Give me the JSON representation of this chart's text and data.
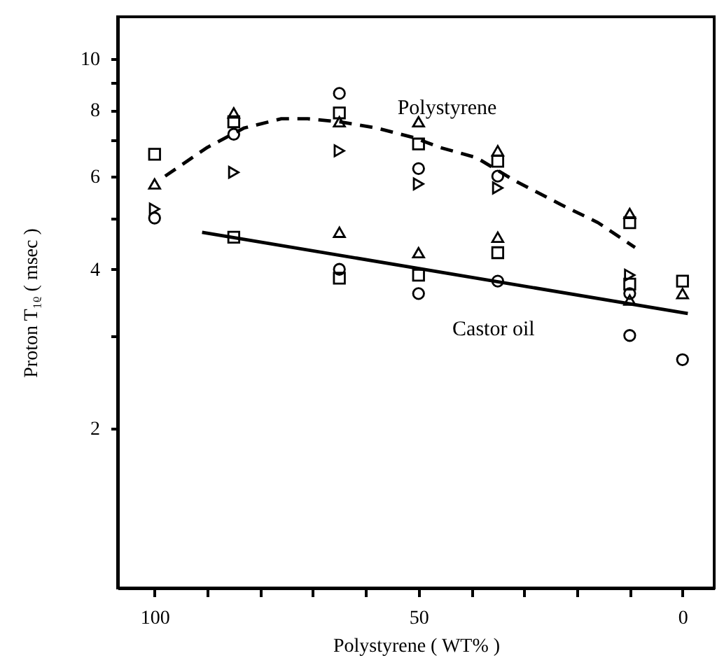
{
  "chart_data": {
    "type": "scatter",
    "xlabel": "Polystyrene ( WT% )",
    "ylabel": "Proton T₁ᵨ ( msec )",
    "log": "y",
    "grid": false,
    "xlim": [
      107,
      -6
    ],
    "xticks": [
      100,
      {
        "value": 90,
        "label": null
      },
      {
        "value": 80,
        "label": null
      },
      {
        "value": 70,
        "label": null
      },
      {
        "value": 60,
        "label": null
      },
      50,
      {
        "value": 40,
        "label": null
      },
      {
        "value": 30,
        "label": null
      },
      {
        "value": 20,
        "label": null
      },
      {
        "value": 10,
        "label": null
      },
      0
    ],
    "ylim": [
      1,
      12
    ],
    "yticks": [
      2,
      {
        "value": 3,
        "label": null
      },
      4,
      {
        "value": 5,
        "label": null
      },
      6,
      {
        "value": 7,
        "label": null
      },
      8,
      {
        "value": 9,
        "label": null
      },
      10
    ],
    "x": [
      100,
      85,
      65,
      50,
      35,
      10,
      0
    ],
    "series": [
      {
        "color": "#000000",
        "marker": "circle",
        "values": [
          5.0,
          7.2,
          8.6,
          6.2,
          6.0,
          3.6,
          null
        ]
      },
      {
        "color": "#000000",
        "marker": "square",
        "values": [
          6.6,
          7.6,
          7.9,
          6.9,
          6.4,
          4.9,
          null
        ]
      },
      {
        "color": "#000000",
        "marker": "triangle",
        "values": [
          5.8,
          7.9,
          7.6,
          7.6,
          6.7,
          5.1,
          null
        ]
      },
      {
        "color": "#000000",
        "marker": "triangle-right",
        "values": [
          5.2,
          6.1,
          6.7,
          5.8,
          5.7,
          3.9,
          null
        ]
      },
      {
        "color": "#000000",
        "marker": "triangle",
        "values": [
          null,
          null,
          4.7,
          4.3,
          4.6,
          3.5,
          3.6
        ]
      },
      {
        "color": "#000000",
        "marker": "square",
        "values": [
          null,
          4.6,
          3.85,
          3.9,
          4.3,
          3.75,
          3.8
        ]
      },
      {
        "color": "#000000",
        "marker": "circle",
        "values": [
          null,
          null,
          4.0,
          3.6,
          3.8,
          3.0,
          2.7
        ]
      },
      {
        "type": "line",
        "name": "Polystyrene",
        "color": "#000000",
        "marker": "none",
        "line_style": "dashed",
        "x": [
          98,
          90,
          83,
          76,
          71,
          65,
          58,
          51,
          46,
          39,
          32,
          23,
          16,
          9
        ],
        "values": [
          6.0,
          6.8,
          7.4,
          7.7,
          7.7,
          7.6,
          7.4,
          7.1,
          6.8,
          6.5,
          5.9,
          5.3,
          4.9,
          4.4
        ]
      },
      {
        "type": "line",
        "name": "Castor oil",
        "color": "#000000",
        "marker": "none",
        "line_style": "solid",
        "x": [
          91,
          -1
        ],
        "values": [
          4.7,
          3.3
        ]
      }
    ]
  }
}
